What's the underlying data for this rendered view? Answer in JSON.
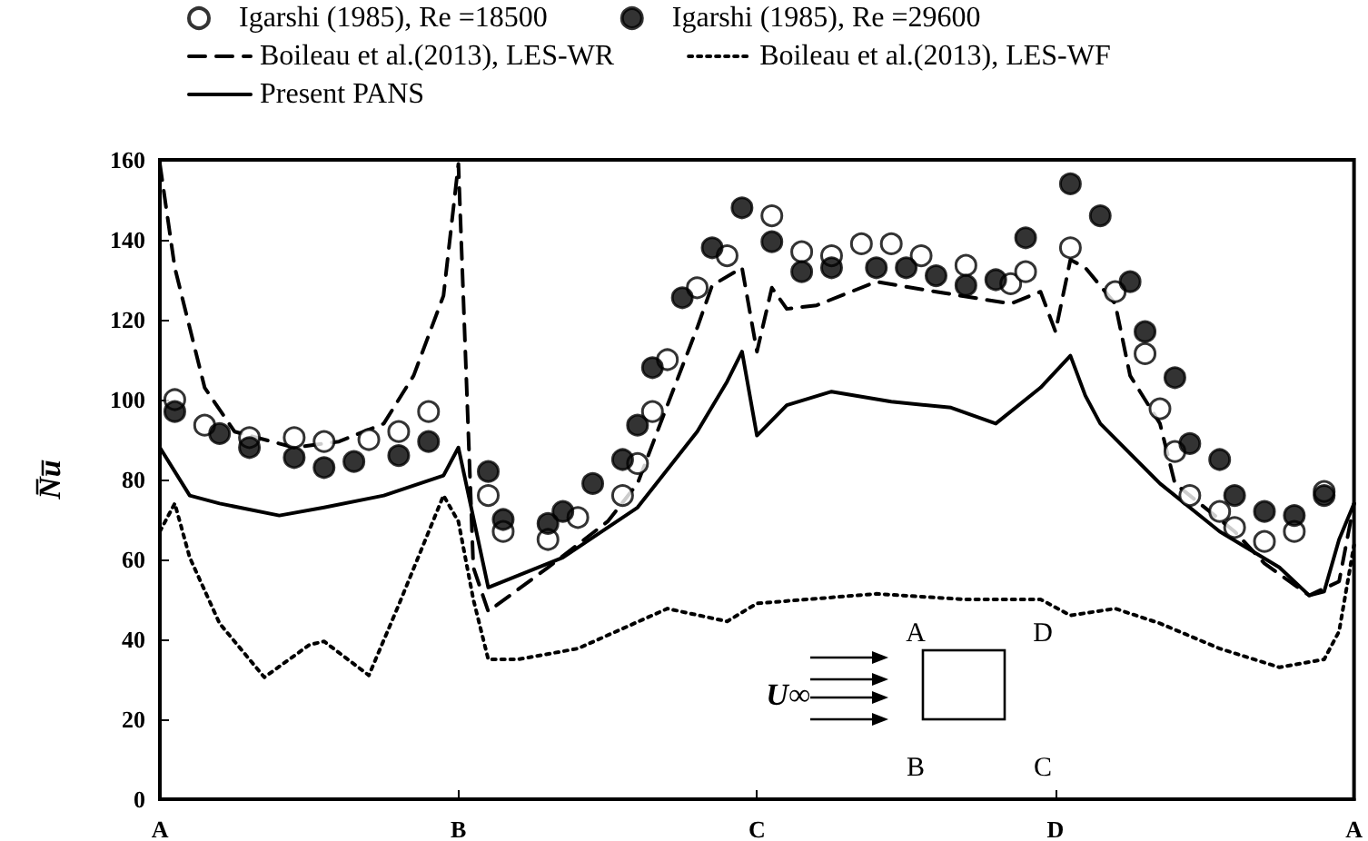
{
  "chart_data": {
    "type": "line",
    "ylabel": "N̅u̅",
    "categories": [
      "A",
      null,
      null,
      null,
      null,
      null,
      null,
      null,
      null,
      null,
      null,
      null,
      null,
      null,
      null,
      null,
      null,
      null,
      null,
      null,
      "B",
      null,
      null,
      null,
      null,
      null,
      null,
      null,
      null,
      null,
      null,
      null,
      null,
      null,
      null,
      null,
      null,
      null,
      null,
      null,
      "C",
      null,
      null,
      null,
      null,
      null,
      null,
      null,
      null,
      null,
      null,
      null,
      null,
      null,
      null,
      null,
      null,
      null,
      null,
      null,
      "D",
      null,
      null,
      null,
      null,
      null,
      null,
      null,
      null,
      null,
      null,
      null,
      null,
      null,
      null,
      null,
      null,
      null,
      null,
      null,
      "A"
    ],
    "ylim": [
      0,
      160
    ],
    "yticks": [
      0,
      20,
      40,
      60,
      80,
      100,
      120,
      140,
      160
    ],
    "grid": false,
    "legend": "top",
    "annotations": [
      "A",
      "D",
      "B",
      "C",
      "U∞"
    ],
    "series": [
      {
        "name": "Igarshi (1985), Re =18500",
        "type": "scatter",
        "marker": "circle",
        "color": "#ffffff",
        "values": [
          null,
          100,
          null,
          93.6,
          null,
          null,
          90.5,
          null,
          null,
          90.5,
          null,
          89.5,
          null,
          null,
          90,
          null,
          92,
          null,
          97,
          null,
          null,
          null,
          76,
          67,
          null,
          null,
          65,
          null,
          70.5,
          null,
          null,
          76,
          84,
          97,
          110,
          null,
          128,
          null,
          136,
          null,
          null,
          146,
          null,
          137,
          null,
          136,
          null,
          139,
          null,
          139,
          null,
          136,
          null,
          null,
          133.6,
          null,
          null,
          129,
          132,
          null,
          null,
          138,
          null,
          null,
          127,
          null,
          111.5,
          97.7,
          87,
          76,
          null,
          72,
          68,
          null,
          64.5,
          null,
          67,
          null,
          77,
          null,
          null
        ]
      },
      {
        "name": "Igarshi (1985), Re =29600",
        "type": "scatter",
        "marker": "circle",
        "color": "#000000",
        "values": [
          null,
          97,
          null,
          null,
          91.5,
          null,
          88,
          null,
          null,
          85.5,
          null,
          83,
          null,
          84.5,
          null,
          null,
          86,
          null,
          89.5,
          null,
          null,
          null,
          82,
          70,
          null,
          null,
          69,
          72,
          null,
          79,
          null,
          85,
          93.6,
          108,
          null,
          125.5,
          null,
          138,
          null,
          148,
          null,
          139.5,
          null,
          132,
          null,
          133,
          null,
          null,
          133,
          null,
          133,
          null,
          131,
          null,
          128.6,
          null,
          130,
          null,
          140.5,
          null,
          null,
          154,
          null,
          146,
          null,
          129.5,
          117,
          null,
          105.5,
          89,
          null,
          85,
          76,
          null,
          72,
          null,
          71,
          null,
          76,
          null,
          null
        ]
      },
      {
        "name": "Boileau et al.(2013), LES-WR",
        "line_style": "dashed",
        "color": "#000000",
        "values": [
          159,
          133,
          118,
          103,
          null,
          92,
          null,
          null,
          null,
          88,
          null,
          null,
          89.5,
          null,
          null,
          94,
          null,
          106,
          null,
          126,
          159,
          58,
          47,
          null,
          null,
          null,
          58,
          null,
          null,
          null,
          69.5,
          null,
          79,
          null,
          98.6,
          null,
          118,
          128.6,
          null,
          133,
          112,
          128,
          122.7,
          null,
          123.6,
          null,
          null,
          null,
          129.5,
          null,
          null,
          null,
          127,
          null,
          null,
          null,
          null,
          124,
          null,
          127,
          117,
          135,
          133,
          null,
          124,
          106,
          null,
          94,
          79,
          null,
          null,
          null,
          67,
          null,
          59,
          null,
          null,
          51,
          null,
          54.5,
          74
        ]
      },
      {
        "name": "Boileau et al.(2013), LES-WF",
        "line_style": "dotted",
        "color": "#000000",
        "values": [
          67,
          74,
          60.5,
          null,
          44,
          null,
          null,
          30.5,
          null,
          null,
          38.6,
          39.5,
          null,
          null,
          31,
          null,
          48.6,
          null,
          null,
          76,
          69.5,
          50,
          35,
          null,
          35,
          null,
          null,
          null,
          37.7,
          null,
          null,
          null,
          null,
          null,
          47.7,
          null,
          null,
          null,
          44.5,
          null,
          49,
          null,
          null,
          null,
          null,
          null,
          null,
          null,
          51.4,
          null,
          null,
          null,
          null,
          null,
          50,
          null,
          null,
          null,
          null,
          50,
          null,
          46,
          null,
          null,
          47.7,
          null,
          null,
          44,
          null,
          null,
          null,
          37.7,
          null,
          null,
          null,
          33,
          null,
          null,
          35,
          42,
          63.6
        ]
      },
      {
        "name": "Present PANS",
        "line_style": "solid",
        "color": "#000000",
        "values": [
          88,
          null,
          76,
          null,
          74,
          null,
          null,
          null,
          71,
          null,
          null,
          73,
          null,
          null,
          null,
          76,
          null,
          null,
          null,
          81,
          88,
          null,
          53,
          null,
          null,
          null,
          null,
          60.5,
          null,
          null,
          null,
          null,
          73,
          null,
          null,
          null,
          92,
          null,
          104.5,
          112,
          91,
          null,
          98.6,
          null,
          null,
          102,
          null,
          null,
          null,
          99.5,
          null,
          null,
          null,
          98,
          null,
          null,
          94,
          null,
          null,
          103,
          null,
          111,
          101,
          94,
          null,
          null,
          null,
          79,
          null,
          null,
          null,
          67,
          null,
          null,
          null,
          58,
          null,
          51,
          52,
          65,
          74
        ]
      }
    ]
  }
}
